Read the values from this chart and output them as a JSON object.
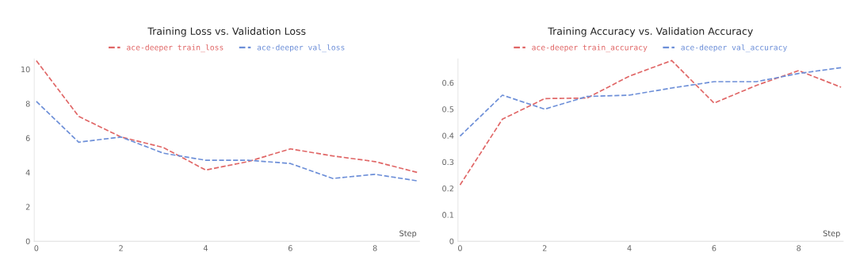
{
  "chart_data": [
    {
      "type": "line",
      "title": "Training Loss vs. Validation Loss",
      "xlabel": "Step",
      "x": [
        0,
        1,
        2,
        3,
        4,
        5,
        6,
        7,
        8,
        9
      ],
      "xlim": [
        -0.05,
        9.05
      ],
      "xticks": [
        0,
        2,
        4,
        6,
        8
      ],
      "ylim": [
        0,
        10.6
      ],
      "yticks": [
        0,
        2,
        4,
        6,
        8,
        10
      ],
      "grid": false,
      "legend": "top",
      "line_style": "dashed",
      "series": [
        {
          "name": "ace-deeper train_loss",
          "color": "#e06666",
          "values": [
            10.5,
            7.26,
            6.06,
            5.45,
            4.14,
            4.63,
            5.37,
            4.96,
            4.63,
            4.0
          ]
        },
        {
          "name": "ace-deeper val_loss",
          "color": "#6d8fd8",
          "values": [
            8.13,
            5.76,
            6.06,
            5.12,
            4.71,
            4.71,
            4.52,
            3.65,
            3.89,
            3.51
          ]
        }
      ]
    },
    {
      "type": "line",
      "title": "Training Accuracy vs. Validation Accuracy",
      "xlabel": "Step",
      "x": [
        0,
        1,
        2,
        3,
        4,
        5,
        6,
        7,
        8,
        9
      ],
      "xlim": [
        -0.05,
        9.05
      ],
      "xticks": [
        0,
        2,
        4,
        6,
        8
      ],
      "ylim": [
        0,
        0.69
      ],
      "yticks": [
        0,
        0.1,
        0.2,
        0.3,
        0.4,
        0.5,
        0.6
      ],
      "grid": false,
      "legend": "top",
      "line_style": "dashed",
      "series": [
        {
          "name": "ace-deeper train_accuracy",
          "color": "#e06666",
          "values": [
            0.213,
            0.462,
            0.54,
            0.542,
            0.625,
            0.684,
            0.523,
            0.59,
            0.646,
            0.583
          ]
        },
        {
          "name": "ace-deeper val_accuracy",
          "color": "#6d8fd8",
          "values": [
            0.398,
            0.553,
            0.5,
            0.548,
            0.553,
            0.58,
            0.604,
            0.604,
            0.635,
            0.657
          ]
        }
      ]
    }
  ]
}
